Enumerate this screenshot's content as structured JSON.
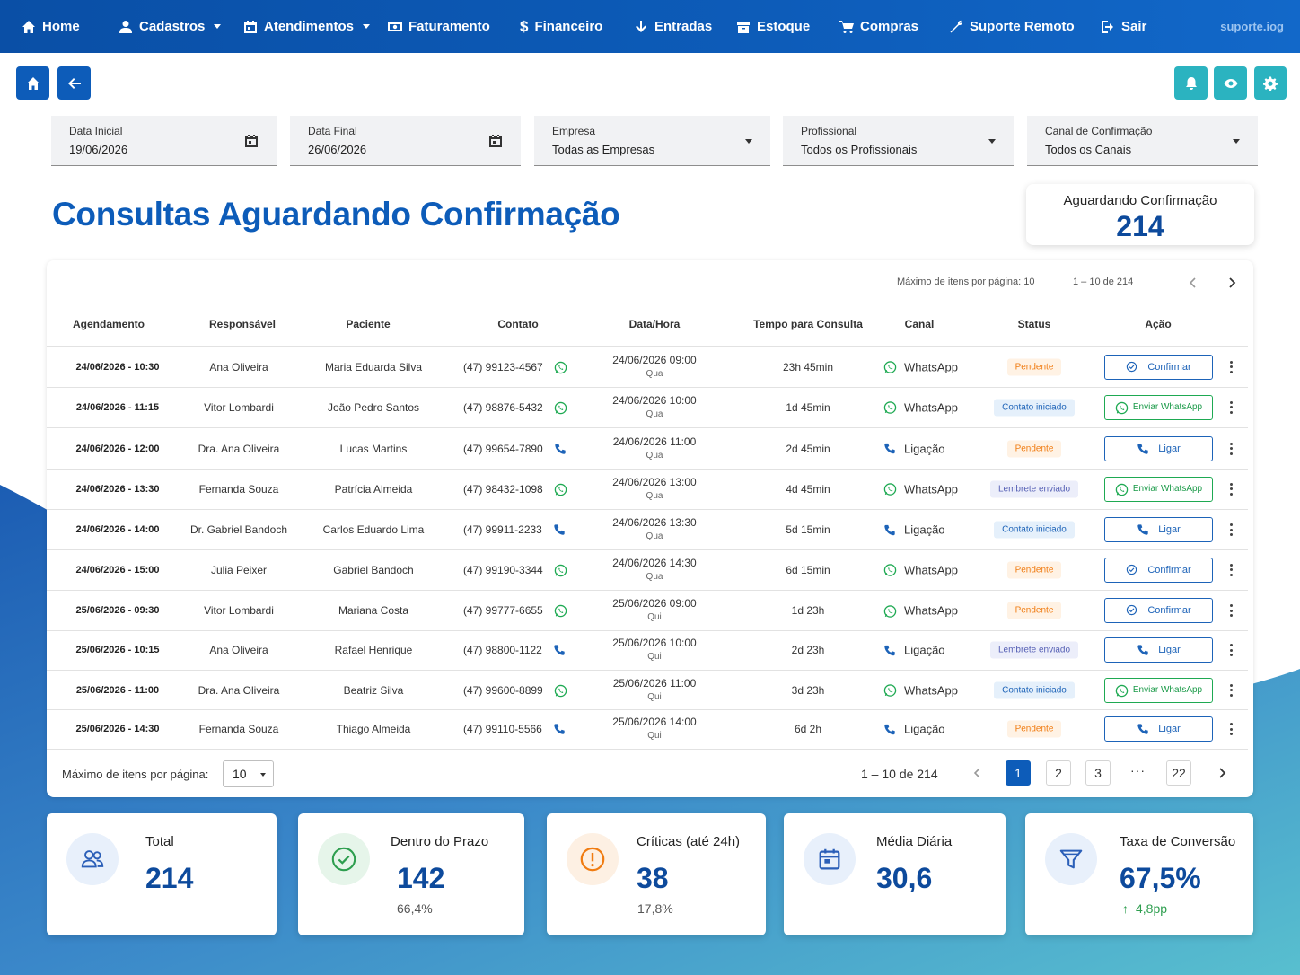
{
  "nav": {
    "items": [
      {
        "label": "Home",
        "icon": "home-icon"
      },
      {
        "label": "Cadastros",
        "icon": "user-icon"
      },
      {
        "label": "Atendimentos",
        "icon": "calendar-icon"
      },
      {
        "label": "Faturamento",
        "icon": "money-icon"
      },
      {
        "label": "Financeiro",
        "icon": "dollar-icon"
      },
      {
        "label": "Entradas",
        "icon": "arrow-down-icon"
      },
      {
        "label": "Estoque",
        "icon": "box-icon"
      },
      {
        "label": "Compras",
        "icon": "cart-icon"
      },
      {
        "label": "Suporte Remoto",
        "icon": "wrench-icon"
      },
      {
        "label": "Sair",
        "icon": "logout-icon"
      }
    ],
    "brand": "suporte.iog"
  },
  "filters": {
    "data_inicial": {
      "label": "Data Inicial",
      "value": "19/06/2026"
    },
    "data_final": {
      "label": "Data Final",
      "value": "26/06/2026"
    },
    "empresa": {
      "label": "Empresa",
      "value": "Todas as Empresas"
    },
    "profissional": {
      "label": "Profissional",
      "value": "Todos os Profissionais"
    },
    "canal": {
      "label": "Canal de Confirmação",
      "value": "Todos os Canais"
    }
  },
  "page_title": "Consultas Aguardando Confirmação",
  "awaiting": {
    "label": "Aguardando Confirmação",
    "value": "214"
  },
  "table": {
    "pager_top": {
      "per_page_label": "Máximo de itens por página: 10",
      "range": "1 – 10 de 214"
    },
    "headers": [
      "Agendamento",
      "Responsável",
      "Paciente",
      "Contato",
      "Data/Hora",
      "Tempo para Consulta",
      "Canal",
      "Status",
      "Ação"
    ],
    "rows": [
      {
        "agendamento": "24/06/2026 - 10:30",
        "responsavel": "Ana Oliveira",
        "paciente": "Maria Eduarda Silva",
        "contato": "(47) 99123-4567",
        "contato_icon": "whatsapp",
        "data": "24/06/2026 09:00",
        "dia": "Qua",
        "tempo": "23h 45min",
        "canal": "WhatsApp",
        "canal_icon": "whatsapp",
        "status": "Pendente",
        "status_type": "pend",
        "acao": "Confirmar",
        "acao_type": "conf"
      },
      {
        "agendamento": "24/06/2026 - 11:15",
        "responsavel": "Vitor Lombardi",
        "paciente": "João Pedro Santos",
        "contato": "(47) 98876-5432",
        "contato_icon": "whatsapp",
        "data": "24/06/2026 10:00",
        "dia": "Qua",
        "tempo": "1d 45min",
        "canal": "WhatsApp",
        "canal_icon": "whatsapp",
        "status": "Contato iniciado",
        "status_type": "cont",
        "acao": "Enviar WhatsApp",
        "acao_type": "wa"
      },
      {
        "agendamento": "24/06/2026 - 12:00",
        "responsavel": "Dra. Ana Oliveira",
        "paciente": "Lucas Martins",
        "contato": "(47) 99654-7890",
        "contato_icon": "phone",
        "data": "24/06/2026 11:00",
        "dia": "Qua",
        "tempo": "2d 45min",
        "canal": "Ligação",
        "canal_icon": "phone",
        "status": "Pendente",
        "status_type": "pend",
        "acao": "Ligar",
        "acao_type": "ligar"
      },
      {
        "agendamento": "24/06/2026 - 13:30",
        "responsavel": "Fernanda Souza",
        "paciente": "Patrícia Almeida",
        "contato": "(47) 98432-1098",
        "contato_icon": "whatsapp",
        "data": "24/06/2026 13:00",
        "dia": "Qua",
        "tempo": "4d 45min",
        "canal": "WhatsApp",
        "canal_icon": "whatsapp",
        "status": "Lembrete enviado",
        "status_type": "lemb",
        "acao": "Enviar WhatsApp",
        "acao_type": "wa"
      },
      {
        "agendamento": "24/06/2026 - 14:00",
        "responsavel": "Dr. Gabriel Bandoch",
        "paciente": "Carlos Eduardo Lima",
        "contato": "(47) 99911-2233",
        "contato_icon": "phone",
        "data": "24/06/2026 13:30",
        "dia": "Qua",
        "tempo": "5d 15min",
        "canal": "Ligação",
        "canal_icon": "phone",
        "status": "Contato iniciado",
        "status_type": "cont",
        "acao": "Ligar",
        "acao_type": "ligar"
      },
      {
        "agendamento": "24/06/2026 - 15:00",
        "responsavel": "Julia Peixer",
        "paciente": "Gabriel Bandoch",
        "contato": "(47) 99190-3344",
        "contato_icon": "whatsapp",
        "data": "24/06/2026 14:30",
        "dia": "Qua",
        "tempo": "6d 15min",
        "canal": "WhatsApp",
        "canal_icon": "whatsapp",
        "status": "Pendente",
        "status_type": "pend",
        "acao": "Confirmar",
        "acao_type": "conf"
      },
      {
        "agendamento": "25/06/2026 - 09:30",
        "responsavel": "Vitor Lombardi",
        "paciente": "Mariana Costa",
        "contato": "(47) 99777-6655",
        "contato_icon": "whatsapp",
        "data": "25/06/2026 09:00",
        "dia": "Qui",
        "tempo": "1d 23h",
        "canal": "WhatsApp",
        "canal_icon": "whatsapp",
        "status": "Pendente",
        "status_type": "pend",
        "acao": "Confirmar",
        "acao_type": "conf"
      },
      {
        "agendamento": "25/06/2026 - 10:15",
        "responsavel": "Ana Oliveira",
        "paciente": "Rafael Henrique",
        "contato": "(47) 98800-1122",
        "contato_icon": "phone",
        "data": "25/06/2026 10:00",
        "dia": "Qui",
        "tempo": "2d 23h",
        "canal": "Ligação",
        "canal_icon": "phone",
        "status": "Lembrete enviado",
        "status_type": "lemb",
        "acao": "Ligar",
        "acao_type": "ligar"
      },
      {
        "agendamento": "25/06/2026 - 11:00",
        "responsavel": "Dra. Ana Oliveira",
        "paciente": "Beatriz Silva",
        "contato": "(47) 99600-8899",
        "contato_icon": "whatsapp",
        "data": "25/06/2026 11:00",
        "dia": "Qui",
        "tempo": "3d 23h",
        "canal": "WhatsApp",
        "canal_icon": "whatsapp",
        "status": "Contato iniciado",
        "status_type": "cont",
        "acao": "Enviar WhatsApp",
        "acao_type": "wa"
      },
      {
        "agendamento": "25/06/2026 - 14:30",
        "responsavel": "Fernanda Souza",
        "paciente": "Thiago Almeida",
        "contato": "(47) 99110-5566",
        "contato_icon": "phone",
        "data": "25/06/2026 14:00",
        "dia": "Qui",
        "tempo": "6d 2h",
        "canal": "Ligação",
        "canal_icon": "phone",
        "status": "Pendente",
        "status_type": "pend",
        "acao": "Ligar",
        "acao_type": "ligar"
      }
    ],
    "pager_bottom": {
      "per_page_label": "Máximo de itens por página:",
      "per_page_value": "10",
      "range": "1 – 10 de 214",
      "pages": [
        "1",
        "2",
        "3"
      ],
      "ellipsis": "···",
      "last_page": "22",
      "current_page": "1"
    }
  },
  "stats": [
    {
      "title": "Total",
      "value": "214",
      "sub": "",
      "icon": "users-icon",
      "icon_color": "#2b5fb8",
      "bg": "#e8f0fb",
      "sub_color": "#555"
    },
    {
      "title": "Dentro do Prazo",
      "value": "142",
      "sub": "66,4%",
      "icon": "check-circle-icon",
      "icon_color": "#2e9e4f",
      "bg": "#e6f5ea",
      "sub_color": "#555"
    },
    {
      "title": "Críticas (até 24h)",
      "value": "38",
      "sub": "17,8%",
      "icon": "alert-circle-icon",
      "icon_color": "#f07c12",
      "bg": "#fdf0e3",
      "sub_color": "#555"
    },
    {
      "title": "Média Diária",
      "value": "30,6",
      "sub": "",
      "icon": "calendar-icon",
      "icon_color": "#2b5fb8",
      "bg": "#e8f0fb",
      "sub_color": "#555"
    },
    {
      "title": "Taxa de Conversão",
      "value": "67,5%",
      "sub": "4,8pp",
      "icon": "funnel-icon",
      "icon_color": "#2b5fb8",
      "bg": "#e8f0fb",
      "sub_color": "#2e9e4f"
    }
  ],
  "colors": {
    "primary": "#0d5cb9",
    "teal": "#2bb3c0",
    "whatsapp": "#1ea952"
  }
}
